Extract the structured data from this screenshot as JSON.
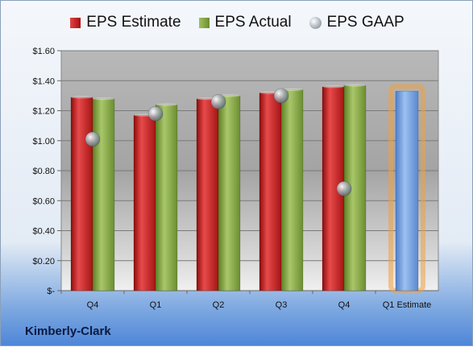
{
  "chart_data": {
    "type": "bar",
    "categories": [
      "Q4",
      "Q1",
      "Q2",
      "Q3",
      "Q4",
      "Q1 Estimate"
    ],
    "series": [
      {
        "name": "EPS Estimate",
        "type": "bar",
        "color": "#c62020",
        "values": [
          1.29,
          1.17,
          1.28,
          1.32,
          1.36,
          null
        ]
      },
      {
        "name": "EPS Actual",
        "type": "bar",
        "color": "#7ea23e",
        "values": [
          1.28,
          1.24,
          1.3,
          1.34,
          1.37,
          null
        ]
      },
      {
        "name": "EPS GAAP",
        "type": "scatter",
        "color": "#9aa3ad",
        "values": [
          1.01,
          1.18,
          1.26,
          1.3,
          0.68,
          null
        ]
      }
    ],
    "forecast": {
      "category": "Q1 Estimate",
      "value": 1.33,
      "color": "#6a9ae0",
      "glow": "#f0a040"
    },
    "y_ticks": [
      "$-",
      "$0.20",
      "$0.40",
      "$0.60",
      "$0.80",
      "$1.00",
      "$1.20",
      "$1.40",
      "$1.60"
    ],
    "ylim": [
      0,
      1.6
    ],
    "legend_position": "top"
  },
  "legend": {
    "estimate": "EPS Estimate",
    "actual": "EPS Actual",
    "gaap": "EPS GAAP"
  },
  "company": "Kimberly-Clark"
}
